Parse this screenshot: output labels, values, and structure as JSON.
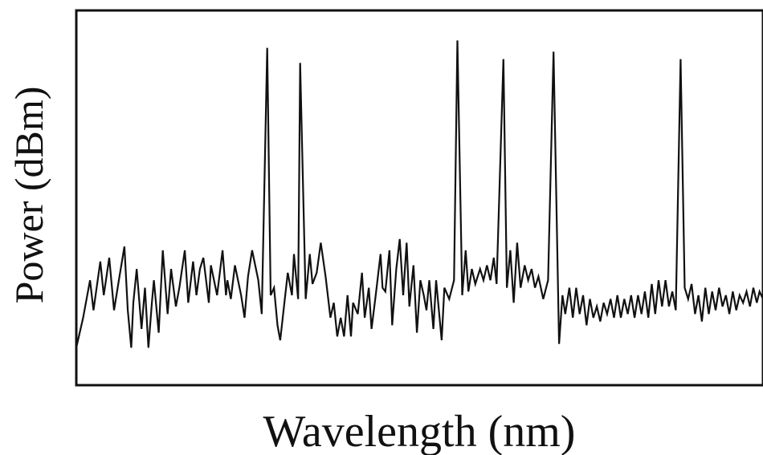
{
  "chart_data": {
    "type": "line",
    "title": "",
    "xlabel": "Wavelength (nm)",
    "ylabel": "Power (dBm)",
    "xlim": [
      0,
      100
    ],
    "ylim": [
      0,
      100
    ],
    "grid": false,
    "show_tick_labels": false,
    "colors": {
      "line": "#111111",
      "axes": "#111111",
      "background": "#ffffff"
    },
    "series": [
      {
        "values": [
          [
            0,
            10
          ],
          [
            1,
            18
          ],
          [
            2,
            28
          ],
          [
            2.5,
            20
          ],
          [
            3.5,
            33
          ],
          [
            4,
            24
          ],
          [
            4.8,
            34
          ],
          [
            5.5,
            20
          ],
          [
            6.2,
            28
          ],
          [
            7,
            37
          ],
          [
            7.5,
            20
          ],
          [
            8,
            10
          ],
          [
            8.3,
            22
          ],
          [
            8.8,
            31
          ],
          [
            9.5,
            15
          ],
          [
            10,
            26
          ],
          [
            10.5,
            10
          ],
          [
            11,
            22
          ],
          [
            11.3,
            28
          ],
          [
            12,
            14
          ],
          [
            12.6,
            36
          ],
          [
            13.3,
            19
          ],
          [
            13.8,
            31
          ],
          [
            14.5,
            21
          ],
          [
            15,
            26
          ],
          [
            15.8,
            36
          ],
          [
            16.3,
            22
          ],
          [
            17,
            33
          ],
          [
            17.5,
            24
          ],
          [
            18,
            31
          ],
          [
            18.5,
            34
          ],
          [
            19.3,
            22
          ],
          [
            19.6,
            32
          ],
          [
            20.5,
            24
          ],
          [
            21.3,
            36
          ],
          [
            21.8,
            24
          ],
          [
            22,
            28
          ],
          [
            22.5,
            23
          ],
          [
            23.1,
            32
          ],
          [
            24,
            24
          ],
          [
            24.5,
            18
          ],
          [
            25,
            29
          ],
          [
            25.6,
            36
          ],
          [
            26.5,
            28
          ],
          [
            27,
            19
          ],
          [
            27.8,
            90
          ],
          [
            28.3,
            24
          ],
          [
            28.8,
            26
          ],
          [
            29.3,
            16
          ],
          [
            29.7,
            12
          ],
          [
            30.3,
            22
          ],
          [
            30.8,
            30
          ],
          [
            31.4,
            24
          ],
          [
            31.7,
            35
          ],
          [
            32.3,
            23
          ],
          [
            32.6,
            86
          ],
          [
            33.4,
            23
          ],
          [
            34,
            35
          ],
          [
            34.4,
            27
          ],
          [
            35,
            30
          ],
          [
            35.6,
            38
          ],
          [
            36.3,
            29
          ],
          [
            37,
            18
          ],
          [
            37.5,
            22
          ],
          [
            38,
            13
          ],
          [
            38.5,
            18
          ],
          [
            39,
            13
          ],
          [
            39.5,
            24
          ],
          [
            40,
            13
          ],
          [
            40.3,
            22
          ],
          [
            41,
            19
          ],
          [
            41.6,
            30
          ],
          [
            42,
            18
          ],
          [
            42.6,
            26
          ],
          [
            43,
            15
          ],
          [
            43.6,
            24
          ],
          [
            44.3,
            35
          ],
          [
            44.6,
            26
          ],
          [
            45,
            25
          ],
          [
            45.6,
            36
          ],
          [
            46,
            16
          ],
          [
            46.6,
            31
          ],
          [
            47.1,
            39
          ],
          [
            47.6,
            24
          ],
          [
            48.1,
            38
          ],
          [
            48.5,
            21
          ],
          [
            49.1,
            32
          ],
          [
            49.6,
            14
          ],
          [
            50.1,
            28
          ],
          [
            50.6,
            24
          ],
          [
            51,
            20
          ],
          [
            51.4,
            28
          ],
          [
            52,
            15
          ],
          [
            52.4,
            28
          ],
          [
            53.2,
            12
          ],
          [
            53.6,
            26
          ],
          [
            54.3,
            23
          ],
          [
            55,
            28
          ],
          [
            55.5,
            92
          ],
          [
            56.2,
            24
          ],
          [
            56.7,
            36
          ],
          [
            57.1,
            25
          ],
          [
            57.6,
            31
          ],
          [
            58.1,
            27
          ],
          [
            58.8,
            31
          ],
          [
            59.3,
            28
          ],
          [
            59.8,
            32
          ],
          [
            60.3,
            28
          ],
          [
            60.8,
            34
          ],
          [
            61.2,
            27
          ],
          [
            62.2,
            87
          ],
          [
            62.7,
            26
          ],
          [
            63.2,
            36
          ],
          [
            63.7,
            22
          ],
          [
            64.2,
            38
          ],
          [
            64.7,
            26
          ],
          [
            65.3,
            32
          ],
          [
            65.8,
            28
          ],
          [
            66.3,
            31
          ],
          [
            66.8,
            26
          ],
          [
            67.3,
            29
          ],
          [
            68,
            23
          ],
          [
            68.7,
            28
          ],
          [
            69.5,
            89
          ],
          [
            70.3,
            11
          ],
          [
            70.8,
            24
          ],
          [
            71.2,
            19
          ],
          [
            71.8,
            26
          ],
          [
            72.3,
            18
          ],
          [
            72.8,
            26
          ],
          [
            73.3,
            19
          ],
          [
            73.8,
            24
          ],
          [
            74.3,
            16
          ],
          [
            74.8,
            23
          ],
          [
            75.3,
            18
          ],
          [
            75.8,
            21
          ],
          [
            76.3,
            17
          ],
          [
            76.8,
            22
          ],
          [
            77.3,
            19
          ],
          [
            77.8,
            23
          ],
          [
            78.3,
            18
          ],
          [
            78.8,
            24
          ],
          [
            79.3,
            18
          ],
          [
            79.8,
            23
          ],
          [
            80.3,
            19
          ],
          [
            80.8,
            24
          ],
          [
            81.3,
            18
          ],
          [
            81.8,
            24
          ],
          [
            82.3,
            19
          ],
          [
            82.8,
            25
          ],
          [
            83.3,
            18
          ],
          [
            83.8,
            27
          ],
          [
            84.3,
            19
          ],
          [
            84.8,
            28
          ],
          [
            85.3,
            21
          ],
          [
            85.8,
            28
          ],
          [
            86.3,
            21
          ],
          [
            86.8,
            25
          ],
          [
            87.3,
            20
          ],
          [
            88,
            87
          ],
          [
            88.6,
            26
          ],
          [
            89.1,
            23
          ],
          [
            89.6,
            27
          ],
          [
            90.1,
            19
          ],
          [
            90.6,
            24
          ],
          [
            91.1,
            17
          ],
          [
            91.6,
            26
          ],
          [
            92.1,
            19
          ],
          [
            92.6,
            25
          ],
          [
            93.1,
            20
          ],
          [
            93.6,
            26
          ],
          [
            94.1,
            21
          ],
          [
            94.6,
            24
          ],
          [
            95.1,
            19
          ],
          [
            95.6,
            25
          ],
          [
            96.1,
            20
          ],
          [
            96.6,
            24
          ],
          [
            97.1,
            22
          ],
          [
            97.6,
            25
          ],
          [
            98.1,
            21
          ],
          [
            98.6,
            26
          ],
          [
            99.1,
            22
          ],
          [
            99.5,
            25
          ],
          [
            100,
            23
          ]
        ]
      }
    ]
  }
}
